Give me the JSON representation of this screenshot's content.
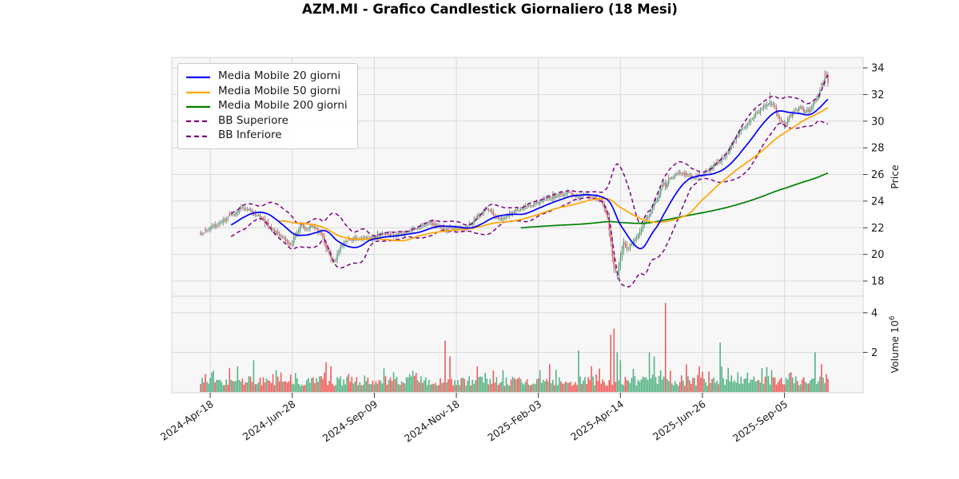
{
  "title": "AZM.MI - Grafico Candlestick Giornaliero (18 Mesi)",
  "legend": [
    {
      "label": "Media Mobile 20 giorni",
      "color": "#0000ff",
      "dash": false
    },
    {
      "label": "Media Mobile 50 giorni",
      "color": "#ffa500",
      "dash": false
    },
    {
      "label": "Media Mobile 200 giorni",
      "color": "#008000",
      "dash": false
    },
    {
      "label": "BB Superiore",
      "color": "#800080",
      "dash": true
    },
    {
      "label": "BB Inferiore",
      "color": "#800080",
      "dash": true
    }
  ],
  "axes": {
    "price_label": "Price",
    "volume_label": "Volume",
    "volume_exp_base": "10",
    "volume_exp_sup": "6",
    "price_ticks": [
      18,
      20,
      22,
      24,
      26,
      28,
      30,
      32,
      34
    ],
    "volume_ticks": [
      2,
      4
    ],
    "x_ticks": [
      {
        "label": "2024-Apr-18",
        "day": 6
      },
      {
        "label": "2024-Jun-28",
        "day": 57
      },
      {
        "label": "2024-Sep-09",
        "day": 108
      },
      {
        "label": "2024-Nov-18",
        "day": 159
      },
      {
        "label": "2025-Feb-03",
        "day": 210
      },
      {
        "label": "2025-Apr-14",
        "day": 261
      },
      {
        "label": "2025-Jun-26",
        "day": 312
      },
      {
        "label": "2025-Sep-05",
        "day": 363
      }
    ]
  },
  "chart_data": {
    "type": "candlestick",
    "panels": [
      "price",
      "volume"
    ],
    "days_total": 391,
    "ylim_price": [
      17.2,
      34.8
    ],
    "ylim_volume_millions": [
      0,
      4.9
    ],
    "grid": true,
    "legend_position": "upper-left",
    "indicators": {
      "ma_windows": [
        20,
        50,
        200
      ],
      "bb_window": 20,
      "bb_sigma": 2
    },
    "close_anchors": [
      [
        0,
        21.5
      ],
      [
        2,
        21.6
      ],
      [
        6,
        22.0
      ],
      [
        13,
        22.4
      ],
      [
        20,
        23.0
      ],
      [
        26,
        23.5
      ],
      [
        31,
        23.3
      ],
      [
        38,
        22.7
      ],
      [
        45,
        21.8
      ],
      [
        50,
        21.3
      ],
      [
        56,
        20.7
      ],
      [
        62,
        22.2
      ],
      [
        66,
        21.9
      ],
      [
        70,
        22.1
      ],
      [
        75,
        21.5
      ],
      [
        79,
        20.3
      ],
      [
        81,
        19.7
      ],
      [
        83,
        19.5
      ],
      [
        85,
        20.0
      ],
      [
        88,
        20.7
      ],
      [
        95,
        21.2
      ],
      [
        105,
        21.2
      ],
      [
        112,
        21.5
      ],
      [
        120,
        21.4
      ],
      [
        128,
        21.7
      ],
      [
        136,
        22.0
      ],
      [
        142,
        22.4
      ],
      [
        148,
        22.1
      ],
      [
        152,
        21.8
      ],
      [
        158,
        22.0
      ],
      [
        164,
        21.9
      ],
      [
        170,
        22.6
      ],
      [
        175,
        23.1
      ],
      [
        178,
        23.4
      ],
      [
        182,
        23.0
      ],
      [
        186,
        22.6
      ],
      [
        190,
        22.9
      ],
      [
        196,
        23.3
      ],
      [
        202,
        23.6
      ],
      [
        208,
        23.8
      ],
      [
        212,
        24.0
      ],
      [
        216,
        24.3
      ],
      [
        222,
        24.4
      ],
      [
        228,
        24.7
      ],
      [
        234,
        24.3
      ],
      [
        240,
        24.5
      ],
      [
        246,
        24.1
      ],
      [
        250,
        23.8
      ],
      [
        253,
        22.8
      ],
      [
        255,
        20.9
      ],
      [
        257,
        19.0
      ],
      [
        259,
        18.5
      ],
      [
        261,
        19.8
      ],
      [
        263,
        20.9
      ],
      [
        265,
        20.4
      ],
      [
        268,
        20.8
      ],
      [
        272,
        21.5
      ],
      [
        276,
        22.4
      ],
      [
        280,
        23.3
      ],
      [
        284,
        24.2
      ],
      [
        288,
        25.4
      ],
      [
        289,
        25.0
      ],
      [
        291,
        25.7
      ],
      [
        297,
        26.2
      ],
      [
        302,
        26.0
      ],
      [
        307,
        25.7
      ],
      [
        311,
        25.9
      ],
      [
        315,
        26.3
      ],
      [
        320,
        26.8
      ],
      [
        325,
        27.2
      ],
      [
        330,
        28.2
      ],
      [
        335,
        29.2
      ],
      [
        340,
        29.8
      ],
      [
        344,
        30.4
      ],
      [
        348,
        30.9
      ],
      [
        352,
        31.3
      ],
      [
        354,
        31.5
      ],
      [
        357,
        31.0
      ],
      [
        360,
        30.1
      ],
      [
        363,
        29.6
      ],
      [
        366,
        30.3
      ],
      [
        369,
        30.8
      ],
      [
        372,
        31.0
      ],
      [
        376,
        30.7
      ],
      [
        379,
        30.9
      ],
      [
        382,
        31.5
      ],
      [
        385,
        32.3
      ],
      [
        387,
        32.9
      ],
      [
        389,
        33.4
      ],
      [
        390,
        32.9
      ]
    ],
    "wick_overrides": [
      {
        "day": 81,
        "side": "low",
        "price": 19.4
      },
      {
        "day": 259,
        "side": "low",
        "price": 18.1
      },
      {
        "day": 354,
        "side": "high",
        "price": 32.2
      },
      {
        "day": 388,
        "side": "high",
        "price": 33.8
      }
    ],
    "volume_base_range_millions": [
      0.3,
      0.9
    ],
    "volume_spikes_millions": [
      [
        3,
        0.9,
        "dn"
      ],
      [
        18,
        1.2,
        "dn"
      ],
      [
        23,
        1.3,
        "up"
      ],
      [
        33,
        1.6,
        "up"
      ],
      [
        47,
        1.1,
        "up"
      ],
      [
        78,
        1.5,
        "dn"
      ],
      [
        81,
        1.3,
        "dn"
      ],
      [
        92,
        0.9,
        "dn"
      ],
      [
        120,
        1.0,
        "up"
      ],
      [
        152,
        2.6,
        "dn"
      ],
      [
        155,
        1.8,
        "dn"
      ],
      [
        172,
        1.3,
        "dn"
      ],
      [
        188,
        1.1,
        "up"
      ],
      [
        211,
        1.1,
        "up"
      ],
      [
        217,
        1.4,
        "dn"
      ],
      [
        235,
        2.1,
        "up"
      ],
      [
        243,
        1.3,
        "dn"
      ],
      [
        255,
        2.9,
        "dn"
      ],
      [
        257,
        3.2,
        "dn"
      ],
      [
        259,
        2.0,
        "up"
      ],
      [
        261,
        1.6,
        "up"
      ],
      [
        279,
        2.0,
        "up"
      ],
      [
        282,
        1.8,
        "up"
      ],
      [
        289,
        4.5,
        "dn"
      ],
      [
        302,
        1.4,
        "dn"
      ],
      [
        310,
        1.3,
        "dn"
      ],
      [
        323,
        2.5,
        "up"
      ],
      [
        334,
        1.0,
        "up"
      ],
      [
        349,
        1.2,
        "up"
      ],
      [
        355,
        1.1,
        "up"
      ],
      [
        367,
        1.0,
        "dn"
      ],
      [
        382,
        2.0,
        "up"
      ],
      [
        386,
        1.4,
        "dn"
      ],
      [
        389,
        0.9,
        "dn"
      ]
    ],
    "colors": {
      "candle_up": "#3fab6e",
      "candle_down": "#ef5350",
      "wick": "#606060",
      "volume_up": "#4caf7d",
      "volume_down": "#ef5350",
      "ma20": "#0000ff",
      "ma50": "#ffa500",
      "ma200": "#008000",
      "bollinger": "#800080",
      "grid": "#d9d9d9",
      "panel_bg": "#f7f7f8",
      "spine": "#d5d5d5",
      "tick_text": "#1a1a1a"
    }
  }
}
